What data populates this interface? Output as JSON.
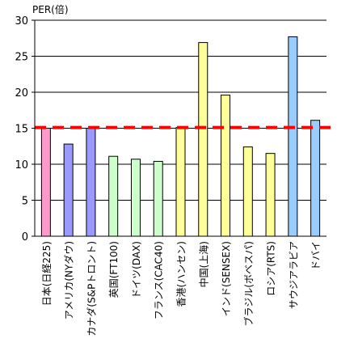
{
  "chart_data": {
    "type": "bar",
    "ylabel": "PER(倍)",
    "ylim": [
      0,
      30
    ],
    "yticks": [
      "0",
      "5",
      "10",
      "15",
      "20",
      "25",
      "30"
    ],
    "grid": true,
    "categories": [
      "日本(日経225)",
      "アメリカ(NYダウ)",
      "カナダ(S&Pトロント)",
      "英国(FT100)",
      "ドイツ(DAX)",
      "フランス(CAC40)",
      "香港(ハンセン)",
      "中国(上海)",
      "インド(SENSEX)",
      "ブラジル(ボベスパ)",
      "ロシア(RTS)",
      "サウジアラビア",
      "ドバイ"
    ],
    "values": [
      15.0,
      12.8,
      15.0,
      11.1,
      10.7,
      10.4,
      15.1,
      26.9,
      19.6,
      12.4,
      11.5,
      27.7,
      16.1
    ],
    "colors": [
      "#ff99cc",
      "#9999ff",
      "#9999ff",
      "#ccffcc",
      "#ccffcc",
      "#ccffcc",
      "#ffff99",
      "#ffff99",
      "#ffff99",
      "#ffff99",
      "#ffff99",
      "#99ccff",
      "#99ccff"
    ],
    "reference_line": {
      "value": 15.1,
      "color": "#ff0000",
      "style": "dashed"
    }
  }
}
